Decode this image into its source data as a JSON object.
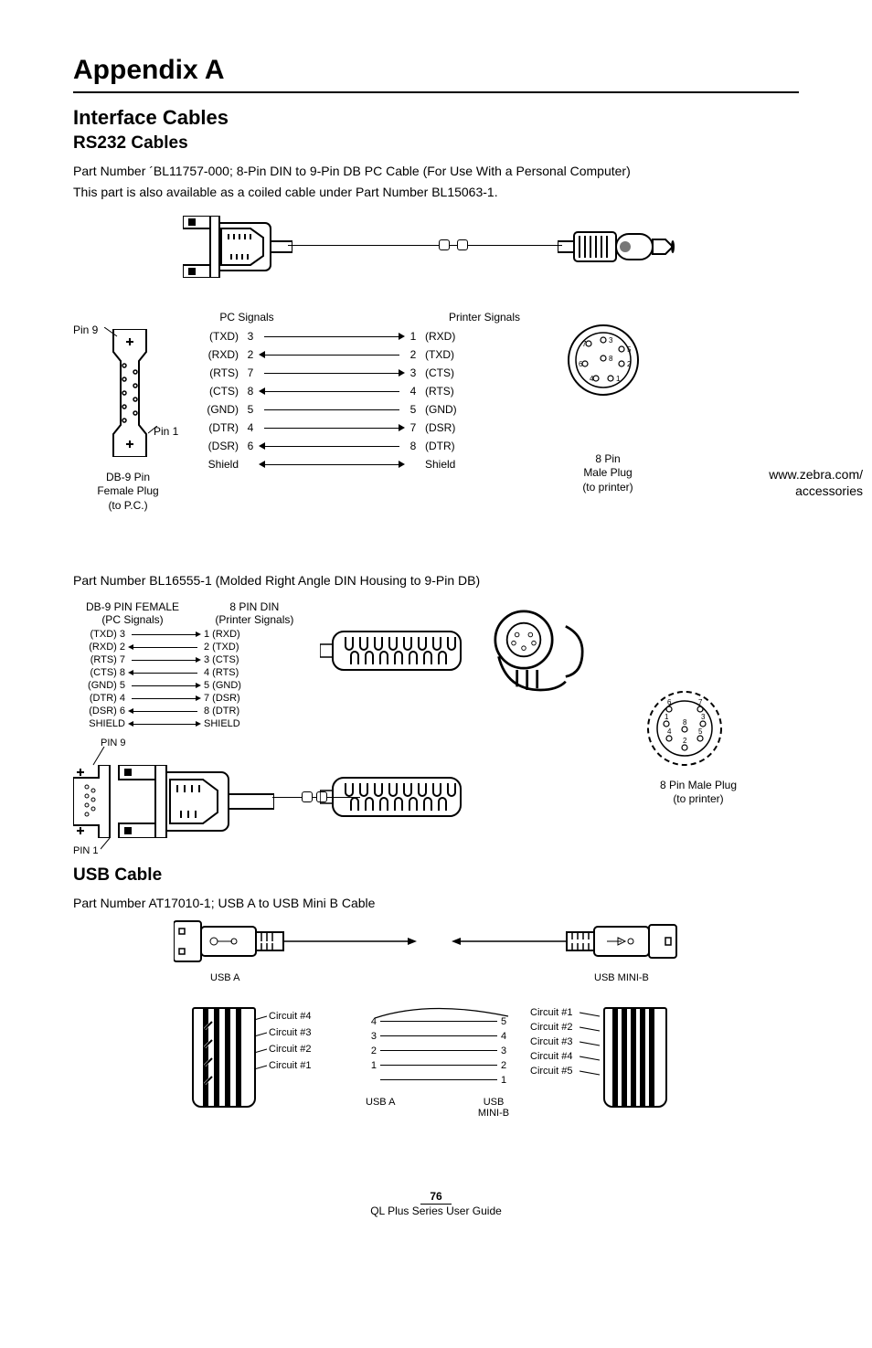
{
  "h1": "Appendix A",
  "h2": "Interface Cables",
  "h3a": "RS232 Cables",
  "p1": "Part Number ´BL11757-000; 8-Pin DIN to 9-Pin DB PC Cable (For Use With a Personal Computer)",
  "p2": "This part is also available as a coiled cable under Part Number BL15063-1.",
  "d1": {
    "pin9": "Pin 9",
    "pin1": "Pin 1",
    "db9_caption_l1": "DB-9 Pin",
    "db9_caption_l2": "Female Plug",
    "db9_caption_l3": "(to P.C.)",
    "hdr_l": "PC Signals",
    "hdr_r": "Printer Signals",
    "rows": [
      {
        "ln": "(TXD)",
        "lnum": "3",
        "dir": "r",
        "rnum": "1",
        "rn": "(RXD)"
      },
      {
        "ln": "(RXD)",
        "lnum": "2",
        "dir": "l",
        "rnum": "2",
        "rn": "(TXD)"
      },
      {
        "ln": "(RTS)",
        "lnum": "7",
        "dir": "r",
        "rnum": "3",
        "rn": "(CTS)"
      },
      {
        "ln": "(CTS)",
        "lnum": "8",
        "dir": "l",
        "rnum": "4",
        "rn": "(RTS)"
      },
      {
        "ln": "(GND)",
        "lnum": "5",
        "dir": "",
        "rnum": "5",
        "rn": "(GND)"
      },
      {
        "ln": "(DTR)",
        "lnum": "4",
        "dir": "r",
        "rnum": "7",
        "rn": "(DSR)"
      },
      {
        "ln": "(DSR)",
        "lnum": "6",
        "dir": "l",
        "rnum": "8",
        "rn": "(DTR)"
      },
      {
        "ln": "Shield",
        "lnum": "",
        "dir": "lr",
        "rnum": "",
        "rn": "Shield"
      }
    ],
    "din_caption_l1": "8 Pin",
    "din_caption_l2": "Male Plug",
    "din_caption_l3": "(to printer)",
    "din_pin_labels": [
      "1",
      "2",
      "3",
      "4",
      "5",
      "6",
      "7",
      "8"
    ],
    "side1": "www.zebra.com/",
    "side2": "accessories"
  },
  "p3": "Part Number BL16555-1 (Molded Right Angle DIN Housing to 9-Pin DB)",
  "d2": {
    "hdr_l1": "DB-9 PIN FEMALE",
    "hdr_l2": "(PC Signals)",
    "hdr_r1": "8 PIN DIN",
    "hdr_r2": "(Printer Signals)",
    "rows": [
      {
        "l": "(TXD) 3",
        "dir": "r",
        "r": "1 (RXD)"
      },
      {
        "l": "(RXD) 2",
        "dir": "l",
        "r": "2 (TXD)"
      },
      {
        "l": "(RTS) 7",
        "dir": "r",
        "r": "3 (CTS)"
      },
      {
        "l": "(CTS) 8",
        "dir": "l",
        "r": "4 (RTS)"
      },
      {
        "l": "(GND) 5",
        "dir": "r",
        "r": "5 (GND)"
      },
      {
        "l": "(DTR) 4",
        "dir": "r",
        "r": "7 (DSR)"
      },
      {
        "l": "(DSR) 6",
        "dir": "l",
        "r": "8 (DTR)"
      },
      {
        "l": "SHIELD",
        "dir": "lr",
        "r": "SHIELD"
      }
    ],
    "pin9": "PIN 9",
    "pin1": "PIN 1",
    "din_pin_labels": [
      "1",
      "2",
      "3",
      "4",
      "5",
      "6",
      "7",
      "8"
    ],
    "cap1": "8 Pin Male Plug",
    "cap2": "(to printer)"
  },
  "h3b": "USB Cable",
  "p4": "Part Number AT17010-1; USB A to USB Mini B Cable",
  "d3": {
    "usba": "USB A",
    "usbb": "USB MINI-B",
    "usba2": "USB A",
    "usbb2_l1": "USB",
    "usbb2_l2": "MINI-B",
    "circuits_l": [
      "Circuit #4",
      "Circuit #3",
      "Circuit #2",
      "Circuit #1"
    ],
    "circuits_r": [
      "Circuit #1",
      "Circuit #2",
      "Circuit #3",
      "Circuit #4",
      "Circuit #5"
    ],
    "wires": [
      {
        "l": "4",
        "r": "5"
      },
      {
        "l": "3",
        "r": "4"
      },
      {
        "l": "2",
        "r": "3"
      },
      {
        "l": "1",
        "r": "2"
      },
      {
        "l": "",
        "r": "1"
      }
    ]
  },
  "footer_page": "76",
  "footer_text": "QL Plus Series User Guide"
}
